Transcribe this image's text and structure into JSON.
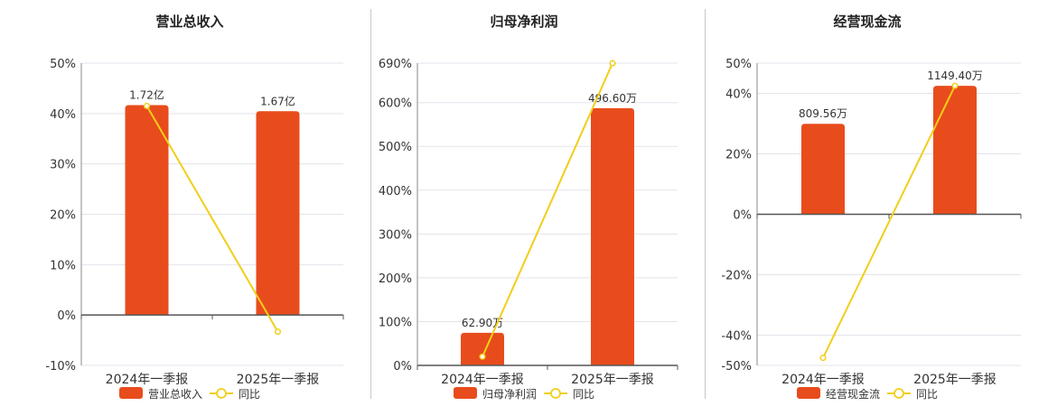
{
  "colors": {
    "bar": "#E84C1C",
    "line": "#F2CE1A",
    "axis": "#555555",
    "grid": "#e3e3ec",
    "text": "#333333"
  },
  "chart_data": [
    {
      "type": "bar",
      "title": "营业总收入",
      "categories": [
        "2024年一季报",
        "2025年一季报"
      ],
      "series": [
        {
          "name": "营业总收入",
          "kind": "bar",
          "values": [
            1.72,
            1.67
          ],
          "value_labels": [
            "1.72亿",
            "1.67亿"
          ]
        },
        {
          "name": "同比",
          "kind": "line",
          "values": [
            41.5,
            -3.3
          ]
        }
      ],
      "bar_ylim": [
        -0.4128,
        2.064
      ],
      "yaxis": {
        "ticks": [
          -10,
          0,
          10,
          20,
          30,
          40,
          50
        ],
        "tick_labels": [
          "-10%",
          "0%",
          "10%",
          "20%",
          "30%",
          "40%",
          "50%"
        ],
        "lim": [
          -10,
          50
        ]
      },
      "legend": "bottom",
      "grid": true
    },
    {
      "type": "bar",
      "title": "归母净利润",
      "categories": [
        "2024年一季报",
        "2025年一季报"
      ],
      "series": [
        {
          "name": "归母净利润",
          "kind": "bar",
          "values": [
            62.9,
            496.6
          ],
          "value_labels": [
            "62.90万",
            "496.60万"
          ]
        },
        {
          "name": "同比",
          "kind": "line",
          "values": [
            20,
            690
          ]
        }
      ],
      "bar_ylim": [
        0,
        583.5
      ],
      "yaxis": {
        "ticks": [
          0,
          100,
          200,
          300,
          400,
          500,
          600,
          690
        ],
        "tick_labels": [
          "0%",
          "100%",
          "200%",
          "300%",
          "400%",
          "500%",
          "600%",
          "690%"
        ],
        "lim": [
          0,
          690
        ]
      },
      "legend": "bottom",
      "grid": true
    },
    {
      "type": "bar",
      "title": "经营现金流",
      "categories": [
        "2024年一季报",
        "2025年一季报"
      ],
      "series": [
        {
          "name": "经营现金流",
          "kind": "bar",
          "values": [
            809.56,
            1149.4
          ],
          "value_labels": [
            "809.56万",
            "1149.40万"
          ]
        },
        {
          "name": "同比",
          "kind": "line",
          "values": [
            -47.5,
            42.5
          ]
        }
      ],
      "bar_ylim": [
        -1352.2,
        1352.2
      ],
      "yaxis": {
        "ticks": [
          -50,
          -40,
          -20,
          0,
          20,
          40,
          50
        ],
        "tick_labels": [
          "-50%",
          "-40%",
          "-20%",
          "0%",
          "20%",
          "40%",
          "50%"
        ],
        "lim": [
          -50,
          50
        ]
      },
      "legend": "bottom",
      "grid": true
    }
  ]
}
